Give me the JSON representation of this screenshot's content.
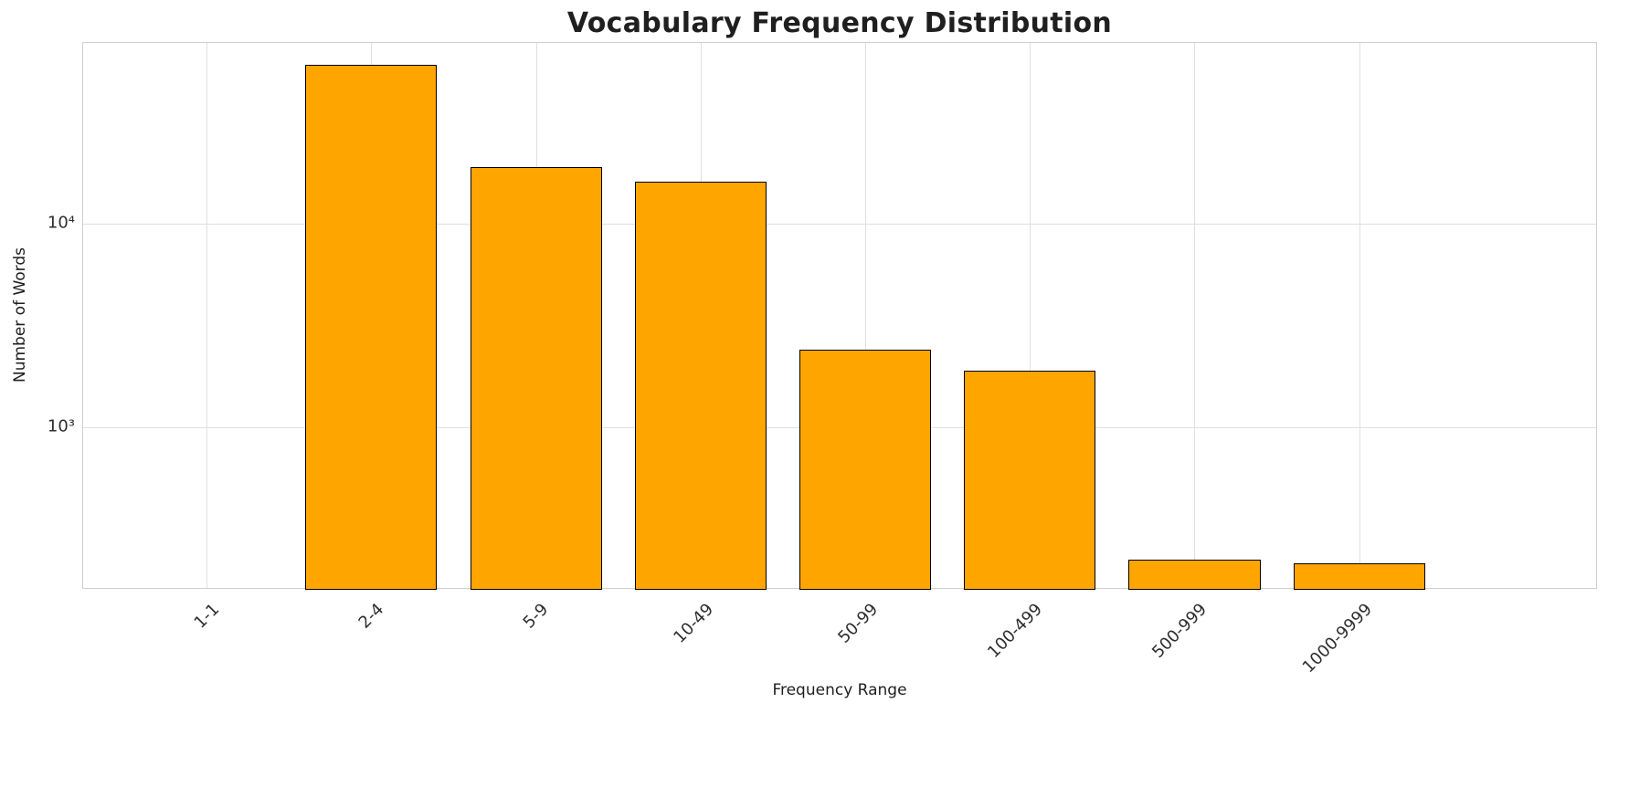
{
  "chart_data": {
    "type": "bar",
    "title": "Vocabulary Frequency Distribution",
    "xlabel": "Frequency Range",
    "ylabel": "Number of Words",
    "categories": [
      "1-1",
      "2-4",
      "5-9",
      "10-49",
      "50-99",
      "100-499",
      "500-999",
      "1000-9999"
    ],
    "values": [
      0,
      60000,
      19000,
      16000,
      2400,
      1900,
      225,
      215
    ],
    "yscale": "log",
    "ylim": [
      160,
      77000
    ],
    "yticks": [
      {
        "value": 1000,
        "label": "10³"
      },
      {
        "value": 10000,
        "label": "10⁴"
      }
    ],
    "bar_color": "#FFA500",
    "bar_edge_color": "#000000",
    "grid": true,
    "legend_position": "none",
    "x_tick_rotation_deg": 45
  }
}
